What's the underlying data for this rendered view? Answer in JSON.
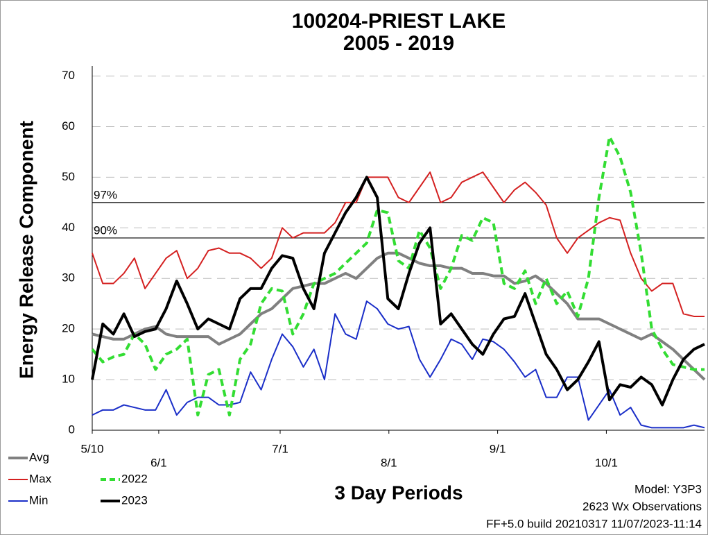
{
  "chart_data": {
    "type": "line",
    "title": "100204-PRIEST LAKE",
    "subtitle": "2005 - 2019",
    "x_label": "3 Day Periods",
    "y_label": "Energy Release Component",
    "annotations": [
      "Model: Y3P3",
      "2623 Wx Observations",
      "FF+5.0 build 20210317 11/07/2023-11:14"
    ],
    "x": [
      0,
      1,
      2,
      3,
      4,
      5,
      6,
      7,
      8,
      9,
      10,
      11,
      12,
      13,
      14,
      15,
      16,
      17,
      18,
      19,
      20,
      21,
      22,
      23,
      24,
      25,
      26,
      27,
      28,
      29,
      30,
      31,
      32,
      33,
      34,
      35,
      36,
      37,
      38,
      39,
      40,
      41,
      42,
      43,
      44,
      45,
      46,
      47,
      48,
      49,
      50,
      51,
      52,
      53,
      54,
      55,
      56,
      57,
      58
    ],
    "xlim": [
      0,
      58
    ],
    "xticks": [
      {
        "value": 0,
        "label": "5/10"
      },
      {
        "value": 6.3,
        "label": "6/1"
      },
      {
        "value": 17.8,
        "label": "7/1"
      },
      {
        "value": 28.1,
        "label": "8/1"
      },
      {
        "value": 38.4,
        "label": "9/1"
      },
      {
        "value": 48.7,
        "label": "10/1"
      }
    ],
    "ylim": [
      0,
      72
    ],
    "yticks": [
      0,
      10,
      20,
      30,
      40,
      50,
      60,
      70
    ],
    "grid": true,
    "reference_lines": [
      {
        "label": "97%",
        "value": 45
      },
      {
        "label": "90%",
        "value": 38
      }
    ],
    "series": [
      {
        "name": "Avg",
        "color": "#808080",
        "width": 4,
        "dashed": false,
        "values": [
          19,
          18.5,
          18,
          18,
          19,
          20,
          20.5,
          19,
          18.5,
          18.5,
          18.5,
          18.5,
          17,
          18,
          19,
          21,
          23,
          24,
          26,
          28,
          28.5,
          29,
          29,
          30,
          31,
          30,
          32,
          34,
          35,
          35,
          34,
          33,
          32.5,
          32.5,
          32,
          32,
          31,
          31,
          30.5,
          30.5,
          29,
          29.5,
          30.5,
          29,
          27,
          25,
          22,
          22,
          22,
          21,
          20,
          19,
          18,
          19,
          17.5,
          16,
          14,
          12,
          10
        ]
      },
      {
        "name": "Max",
        "color": "#d42020",
        "width": 2,
        "dashed": false,
        "values": [
          35,
          29,
          29,
          31,
          34,
          28,
          31,
          34,
          35.5,
          30,
          32,
          35.5,
          36,
          35,
          35,
          34,
          32,
          34,
          40,
          38,
          39,
          39,
          39,
          41,
          45,
          45,
          50,
          50,
          50,
          46,
          45,
          48,
          51,
          45,
          46,
          49,
          50,
          51,
          48,
          45,
          47.5,
          49,
          47,
          44.5,
          38,
          35,
          38,
          39.5,
          41,
          42,
          41.5,
          35,
          30,
          27.5,
          29,
          29,
          23,
          22.5,
          22.5
        ]
      },
      {
        "name": "Min",
        "color": "#1a2ec8",
        "width": 2,
        "dashed": false,
        "values": [
          3,
          4,
          4,
          5,
          4.5,
          4,
          4,
          8,
          3,
          5.5,
          6.5,
          6.5,
          5,
          5,
          5.5,
          11.5,
          8,
          14,
          19,
          16.5,
          12.5,
          16,
          10,
          23,
          19,
          18,
          25.5,
          24,
          21,
          20,
          20.5,
          14,
          10.5,
          14,
          18,
          17,
          14,
          18,
          17.5,
          16,
          13.5,
          10.5,
          12,
          6.5,
          6.5,
          10.5,
          10.5,
          2,
          5,
          8,
          3,
          4.5,
          1,
          0.5,
          0.5,
          0.5,
          0.5,
          1,
          0.5
        ]
      },
      {
        "name": "2022",
        "color": "#33dd33",
        "width": 4,
        "dashed": true,
        "values": [
          16,
          13.5,
          14.5,
          15,
          19,
          17,
          12,
          15,
          16,
          18,
          3,
          11,
          12,
          3,
          14,
          17,
          25,
          28,
          27.5,
          19,
          23,
          29,
          30,
          31,
          33,
          35,
          37,
          43.5,
          43,
          33.5,
          32,
          39.5,
          36,
          28,
          32,
          38.5,
          37.5,
          42,
          41,
          29,
          28,
          31.5,
          25,
          30,
          25,
          27.5,
          22.5,
          30,
          46,
          58,
          54,
          47,
          35,
          20,
          16,
          13,
          12.5,
          12,
          12
        ]
      },
      {
        "name": "2023",
        "color": "#000000",
        "width": 4,
        "dashed": false,
        "values": [
          10,
          21,
          19,
          23,
          18.5,
          19.5,
          20,
          24,
          29.5,
          25,
          20,
          22,
          21,
          20,
          26,
          28,
          28,
          32,
          34.5,
          34,
          28,
          24,
          35,
          39,
          43,
          46,
          50,
          46,
          26,
          24,
          31,
          37,
          40,
          21,
          23,
          20,
          17,
          15,
          19,
          22,
          22.5,
          27,
          21,
          15,
          12,
          8,
          10,
          13.5,
          17.5,
          6,
          9,
          8.5,
          10.5,
          9,
          5,
          10,
          14,
          16,
          17
        ]
      }
    ]
  }
}
